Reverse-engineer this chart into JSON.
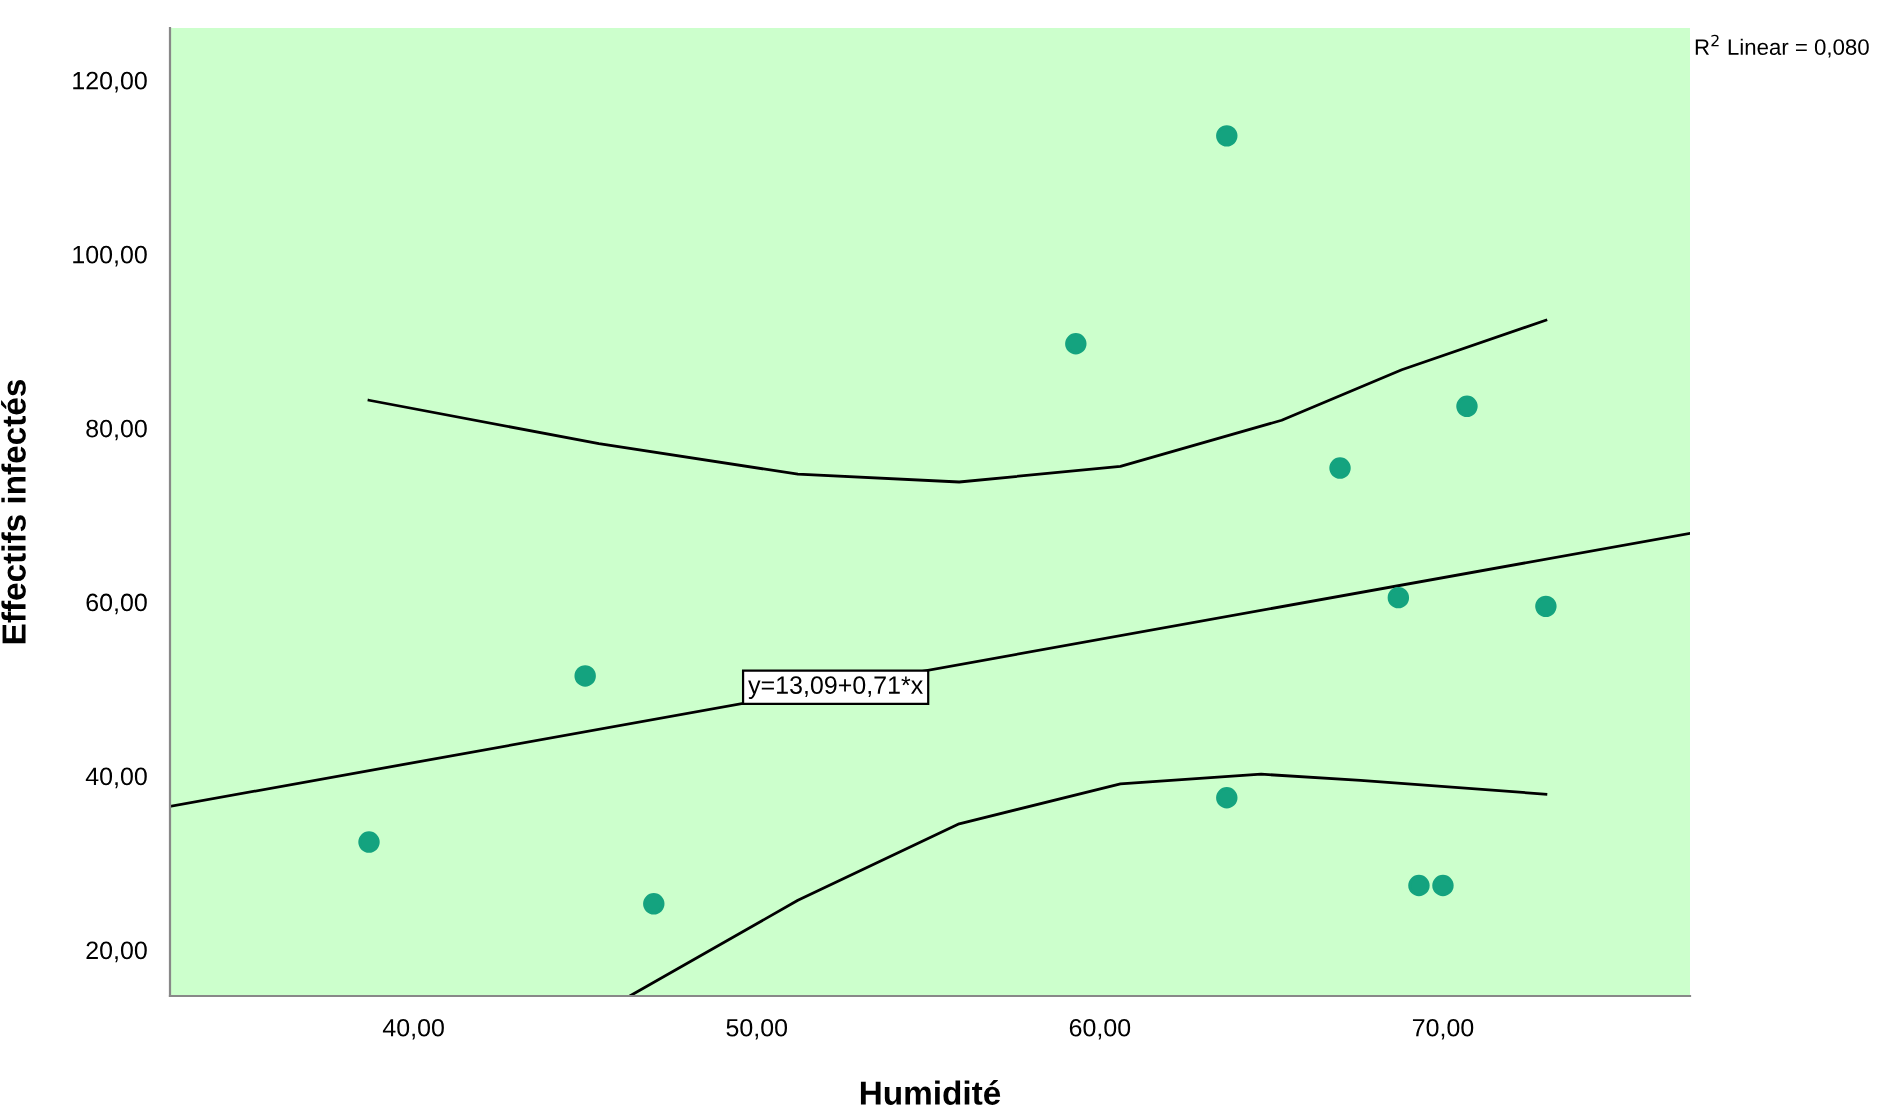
{
  "chart_data": {
    "type": "scatter",
    "xlabel": "Humidité",
    "ylabel": "Effectifs infectés",
    "xlim": [
      32.9,
      77.2
    ],
    "ylim": [
      14.7,
      126
    ],
    "xticks": [
      {
        "value": 40,
        "label": "40,00"
      },
      {
        "value": 50,
        "label": "50,00"
      },
      {
        "value": 60,
        "label": "60,00"
      },
      {
        "value": 70,
        "label": "70,00"
      }
    ],
    "yticks": [
      {
        "value": 20,
        "label": "20,00"
      },
      {
        "value": 40,
        "label": "40,00"
      },
      {
        "value": 60,
        "label": "60,00"
      },
      {
        "value": 80,
        "label": "80,00"
      },
      {
        "value": 100,
        "label": "100,00"
      },
      {
        "value": 120,
        "label": "120,00"
      }
    ],
    "grid": false,
    "legend": false,
    "series": [
      {
        "marker": "circle",
        "color": "#14a37f",
        "x": [
          38.7,
          45.0,
          47.0,
          59.3,
          63.7,
          63.7,
          67.0,
          68.7,
          69.3,
          70.0,
          70.7,
          73.0
        ],
        "values": [
          32.4,
          51.5,
          25.3,
          89.7,
          113.6,
          37.5,
          75.4,
          60.5,
          27.4,
          27.4,
          82.5,
          59.5
        ]
      },
      {
        "type": "line",
        "marker": "none",
        "color": "#000000",
        "x": [
          32.9,
          77.2
        ],
        "values": [
          36.5,
          67.9
        ]
      },
      {
        "type": "line",
        "marker": "none",
        "color": "#000000",
        "x": [
          38.7,
          45.4,
          51.2,
          55.9,
          60.6,
          65.3,
          68.8,
          73.0
        ],
        "values": [
          83.2,
          78.2,
          74.7,
          73.8,
          75.6,
          80.9,
          86.7,
          92.4
        ]
      },
      {
        "type": "line",
        "marker": "none",
        "color": "#000000",
        "x": [
          46.3,
          51.2,
          55.9,
          60.6,
          64.7,
          67.6,
          73.0
        ],
        "values": [
          14.7,
          25.7,
          34.5,
          39.1,
          40.2,
          39.5,
          37.9
        ]
      }
    ],
    "annotations": [
      {
        "text": "y=13,09+0,71*x",
        "x": 52.3,
        "y": 50.2
      },
      "R$^{2}$ Linear = 0,080"
    ]
  }
}
